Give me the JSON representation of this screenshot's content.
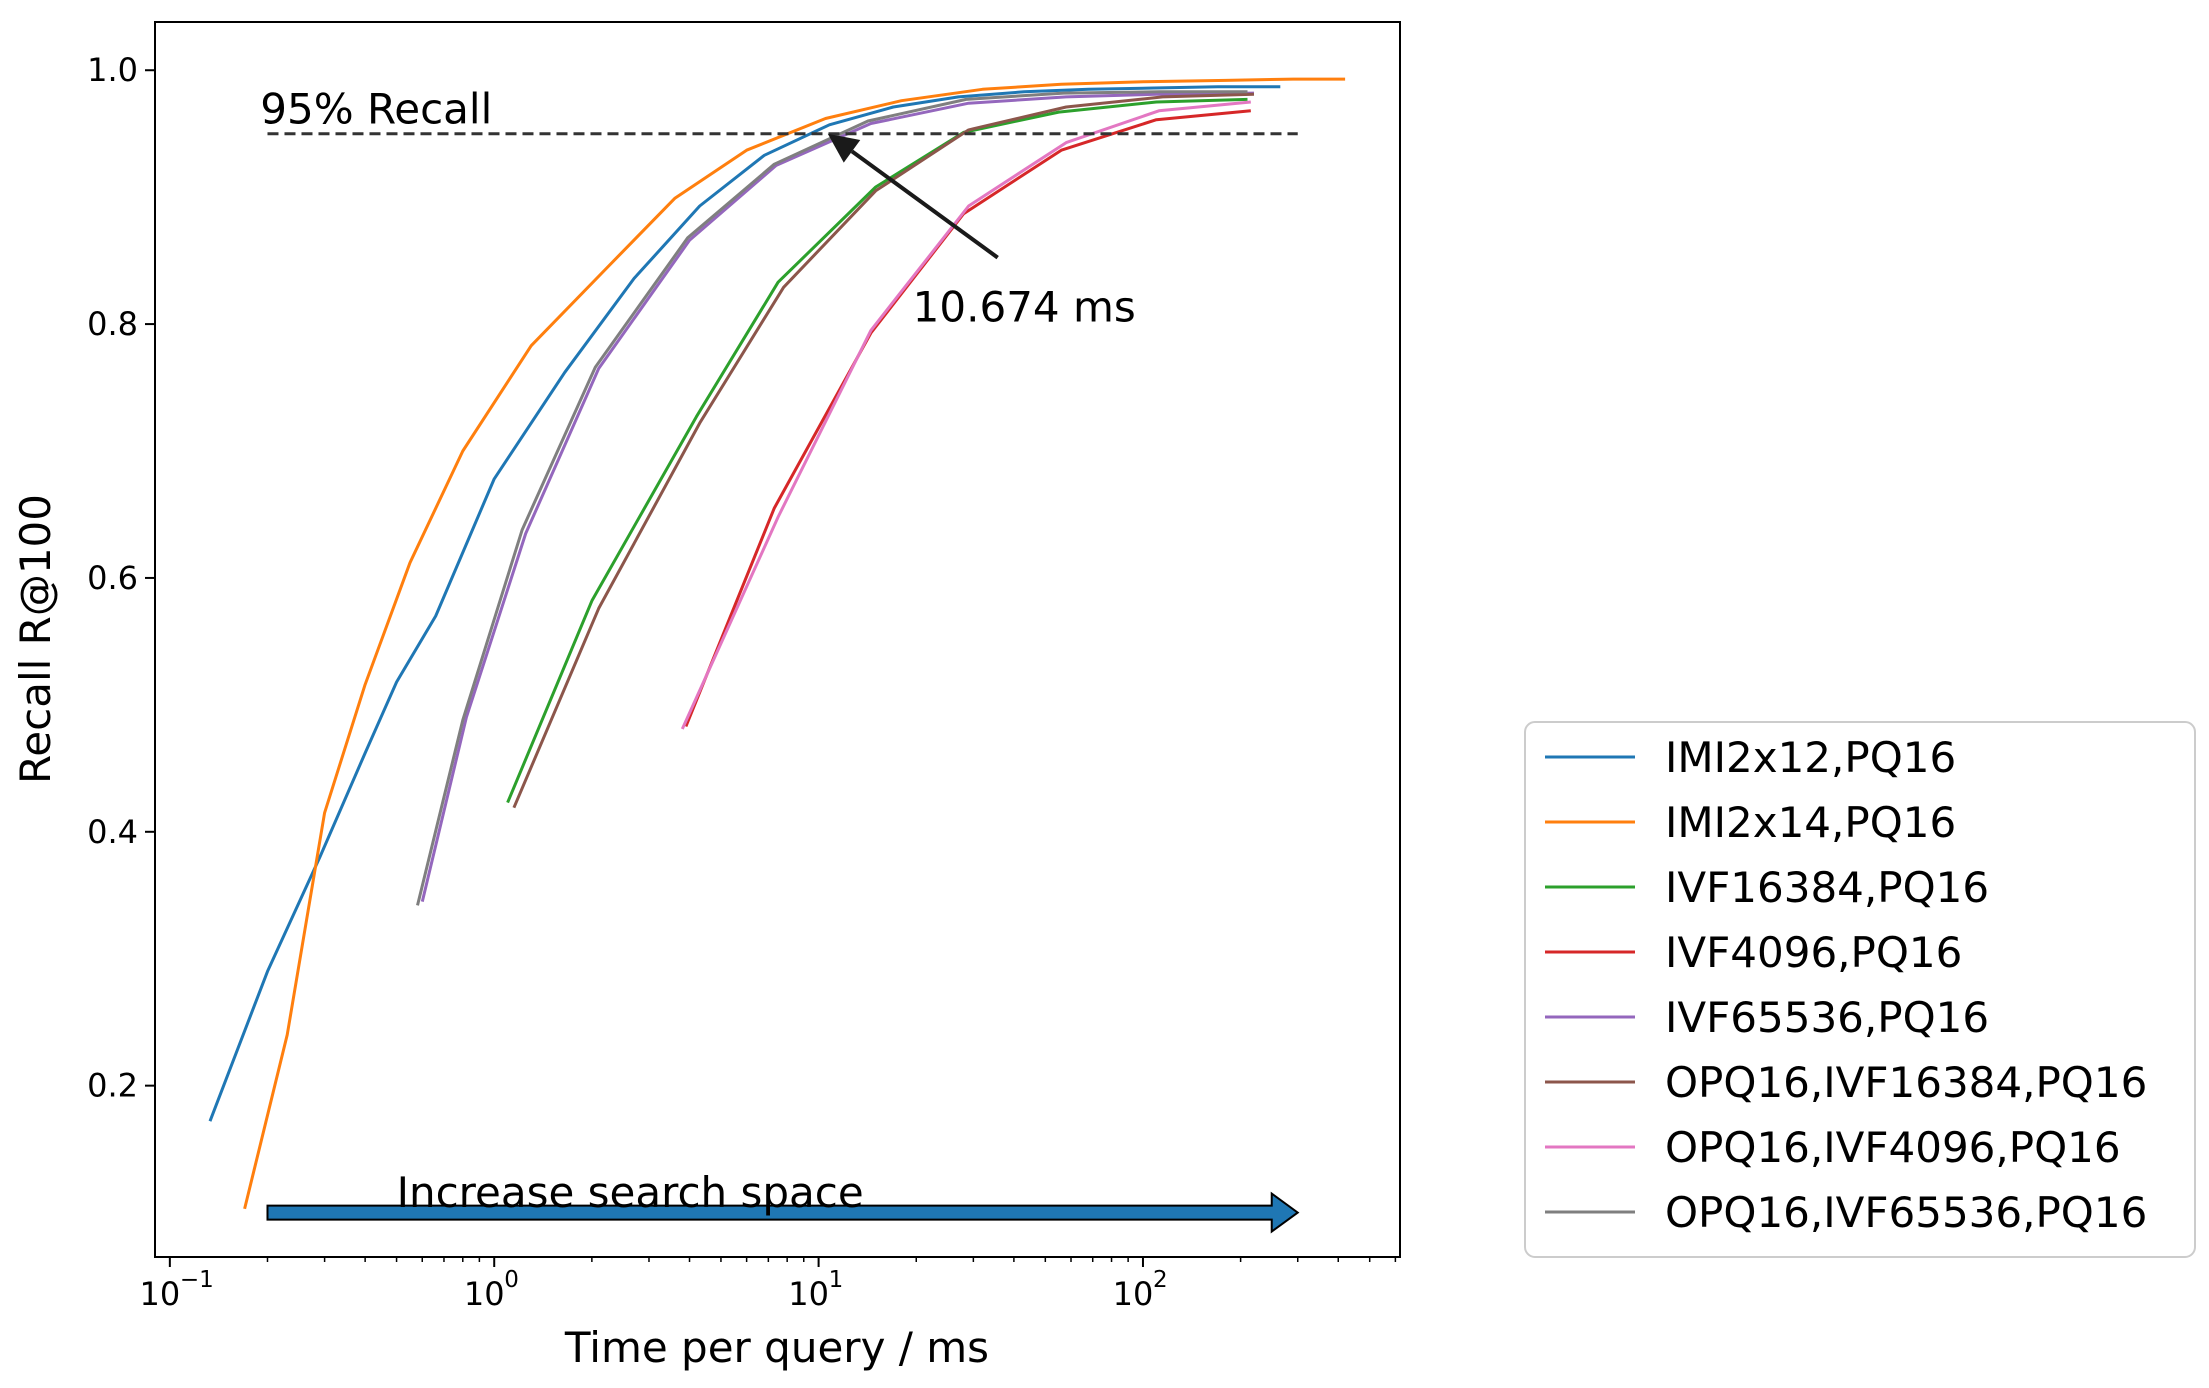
{
  "chart_data": {
    "type": "line",
    "title": "",
    "xlabel": "Time per query / ms",
    "ylabel": "Recall R@100",
    "xscale": "log",
    "xlim": [
      0.09,
      620
    ],
    "ylim": [
      0.065,
      1.038
    ],
    "x_ticks": [
      {
        "value": 0.1,
        "base": "10",
        "exp": "−1"
      },
      {
        "value": 1,
        "base": "10",
        "exp": "0"
      },
      {
        "value": 10,
        "base": "10",
        "exp": "1"
      },
      {
        "value": 100,
        "base": "10",
        "exp": "2"
      }
    ],
    "y_ticks": [
      {
        "value": 0.2,
        "label": "0.2"
      },
      {
        "value": 0.4,
        "label": "0.4"
      },
      {
        "value": 0.6,
        "label": "0.6"
      },
      {
        "value": 0.8,
        "label": "0.8"
      },
      {
        "value": 1.0,
        "label": "1.0"
      }
    ],
    "grid": false,
    "legend_position": "outside-right-bottom",
    "series": [
      {
        "name": "IMI2x12,PQ16",
        "color": "#1f77b4",
        "points": [
          [
            0.133,
            0.172
          ],
          [
            0.2,
            0.29
          ],
          [
            0.29,
            0.38
          ],
          [
            0.4,
            0.462
          ],
          [
            0.5,
            0.518
          ],
          [
            0.66,
            0.57
          ],
          [
            1.0,
            0.678
          ],
          [
            1.65,
            0.762
          ],
          [
            2.7,
            0.836
          ],
          [
            4.3,
            0.893
          ],
          [
            6.8,
            0.933
          ],
          [
            10.8,
            0.957
          ],
          [
            17,
            0.971
          ],
          [
            27,
            0.979
          ],
          [
            43,
            0.983
          ],
          [
            68,
            0.985
          ],
          [
            108,
            0.986
          ],
          [
            170,
            0.987
          ],
          [
            265,
            0.987
          ]
        ]
      },
      {
        "name": "IMI2x14,PQ16",
        "color": "#ff7f0e",
        "points": [
          [
            0.17,
            0.103
          ],
          [
            0.23,
            0.24
          ],
          [
            0.3,
            0.415
          ],
          [
            0.4,
            0.516
          ],
          [
            0.55,
            0.612
          ],
          [
            0.8,
            0.7
          ],
          [
            1.3,
            0.783
          ],
          [
            2.2,
            0.843
          ],
          [
            3.6,
            0.899
          ],
          [
            6.0,
            0.937
          ],
          [
            10.5,
            0.962
          ],
          [
            18,
            0.976
          ],
          [
            32,
            0.985
          ],
          [
            56,
            0.989
          ],
          [
            100,
            0.991
          ],
          [
            180,
            0.992
          ],
          [
            290,
            0.993
          ],
          [
            420,
            0.993
          ]
        ]
      },
      {
        "name": "IVF16384,PQ16",
        "color": "#2ca02c",
        "points": [
          [
            1.1,
            0.423
          ],
          [
            2.0,
            0.582
          ],
          [
            4.2,
            0.727
          ],
          [
            7.5,
            0.833
          ],
          [
            15,
            0.908
          ],
          [
            28,
            0.951
          ],
          [
            55,
            0.967
          ],
          [
            110,
            0.975
          ],
          [
            210,
            0.977
          ]
        ]
      },
      {
        "name": "IVF4096,PQ16",
        "color": "#d62728",
        "points": [
          [
            3.9,
            0.483
          ],
          [
            7.3,
            0.655
          ],
          [
            14.5,
            0.793
          ],
          [
            28,
            0.887
          ],
          [
            56,
            0.937
          ],
          [
            110,
            0.961
          ],
          [
            215,
            0.968
          ]
        ]
      },
      {
        "name": "IVF65536,PQ16",
        "color": "#9467bd",
        "points": [
          [
            0.6,
            0.345
          ],
          [
            0.82,
            0.49
          ],
          [
            1.25,
            0.635
          ],
          [
            2.1,
            0.765
          ],
          [
            4.0,
            0.866
          ],
          [
            7.4,
            0.925
          ],
          [
            14.5,
            0.958
          ],
          [
            29,
            0.974
          ],
          [
            58,
            0.979
          ],
          [
            110,
            0.981
          ],
          [
            220,
            0.982
          ]
        ]
      },
      {
        "name": "OPQ16,IVF16384,PQ16",
        "color": "#8c564b",
        "points": [
          [
            1.15,
            0.419
          ],
          [
            2.1,
            0.576
          ],
          [
            4.3,
            0.722
          ],
          [
            7.8,
            0.829
          ],
          [
            15,
            0.905
          ],
          [
            29,
            0.953
          ],
          [
            58,
            0.971
          ],
          [
            115,
            0.979
          ],
          [
            220,
            0.981
          ]
        ]
      },
      {
        "name": "OPQ16,IVF4096,PQ16",
        "color": "#e377c2",
        "points": [
          [
            3.8,
            0.481
          ],
          [
            7.5,
            0.648
          ],
          [
            14.5,
            0.795
          ],
          [
            29,
            0.893
          ],
          [
            58,
            0.943
          ],
          [
            112,
            0.968
          ],
          [
            215,
            0.975
          ]
        ]
      },
      {
        "name": "OPQ16,IVF65536,PQ16",
        "color": "#7f7f7f",
        "points": [
          [
            0.58,
            0.342
          ],
          [
            0.8,
            0.488
          ],
          [
            1.22,
            0.638
          ],
          [
            2.05,
            0.766
          ],
          [
            3.95,
            0.868
          ],
          [
            7.3,
            0.926
          ],
          [
            14.2,
            0.96
          ],
          [
            28.5,
            0.977
          ],
          [
            57,
            0.982
          ],
          [
            112,
            0.983
          ],
          [
            210,
            0.983
          ]
        ]
      }
    ],
    "reference_line": {
      "y": 0.95,
      "x_range": [
        0.2,
        300
      ],
      "label": "95% Recall",
      "label_x": 0.19
    },
    "annotations": [
      {
        "name": "operating-point-annotation",
        "text": "10.674 ms",
        "point": [
          10.674,
          0.95
        ],
        "text_pos": [
          19.5,
          0.813
        ]
      },
      {
        "name": "search-space-annotation",
        "text": "Increase search space",
        "arrow_from": [
          0.2,
          0.1
        ],
        "arrow_to": [
          300,
          0.1
        ],
        "text_pos": [
          0.5,
          0.12
        ]
      }
    ]
  }
}
